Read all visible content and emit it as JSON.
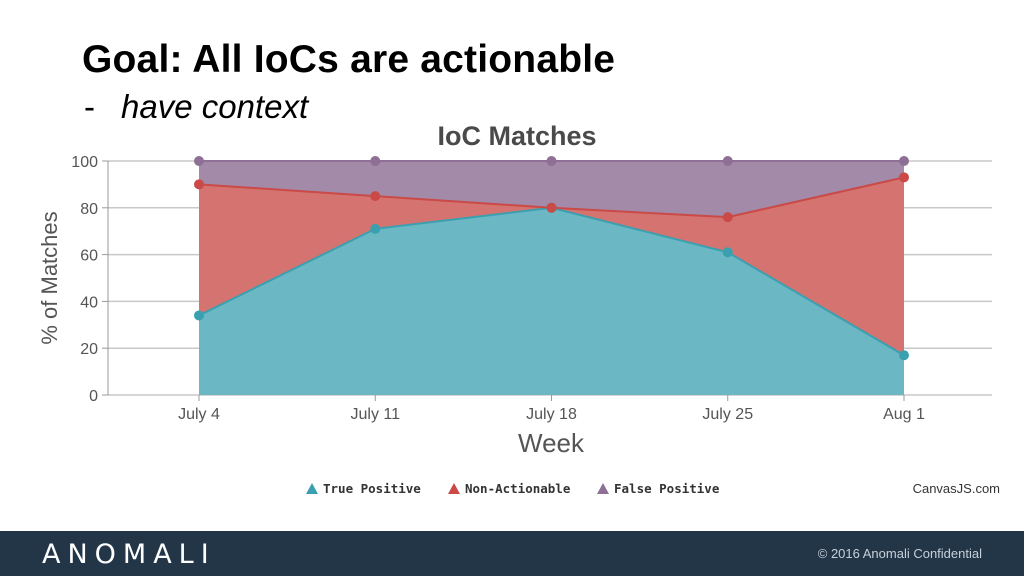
{
  "slide": {
    "title": "Goal: All IoCs are actionable",
    "bullet_marker": "-",
    "subtitle": "have context"
  },
  "chart_data": {
    "type": "area",
    "stacked": true,
    "stack_mode": "100%",
    "title": "IoC Matches",
    "xlabel": "Week",
    "ylabel": "% of Matches",
    "categories": [
      "July 4",
      "July 11",
      "July 18",
      "July 25",
      "Aug 1"
    ],
    "ylim": [
      0,
      100
    ],
    "yticks": [
      "0",
      "20",
      "40",
      "60",
      "80",
      "100"
    ],
    "grid": true,
    "legend_position": "bottom",
    "series": [
      {
        "name": "True Positive",
        "color": "#6bb7c4",
        "line": "#3aa0b0",
        "cumulative": [
          34,
          71,
          80,
          61,
          17
        ]
      },
      {
        "name": "Non-Actionable",
        "color": "#d47370",
        "line": "#c94a47",
        "cumulative": [
          90,
          85,
          80,
          76,
          93
        ]
      },
      {
        "name": "False Positive",
        "color": "#a38aa8",
        "line": "#8e6f95",
        "cumulative": [
          100,
          100,
          100,
          100,
          100
        ]
      }
    ],
    "credit": "CanvasJS.com"
  },
  "footer": {
    "brand": "ANOMALI",
    "copyright": "© 2016 Anomali Confidential"
  }
}
